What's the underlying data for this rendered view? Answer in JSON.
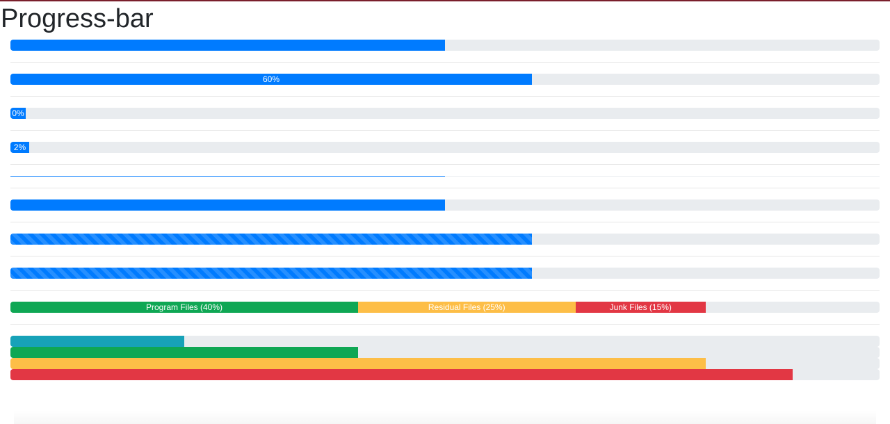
{
  "page": {
    "title": "Progress-bar"
  },
  "colors": {
    "primary": "#007bff",
    "success": "#0fa754",
    "warning": "#fdbe47",
    "danger": "#e23744",
    "info": "#17a2b8",
    "track": "#e9ecef"
  },
  "progress_bars": [
    {
      "value": 50,
      "label": "",
      "style": "default"
    },
    {
      "value": 60,
      "label": "60%",
      "style": "labeled"
    },
    {
      "value": 0,
      "label": "0%",
      "style": "labeled-min"
    },
    {
      "value": 2,
      "label": "2%",
      "style": "labeled-min"
    },
    {
      "value": 50,
      "label": "",
      "style": "thin"
    },
    {
      "value": 50,
      "label": "",
      "style": "default"
    },
    {
      "value": 60,
      "label": "",
      "style": "striped"
    },
    {
      "value": 60,
      "label": "",
      "style": "striped-animated"
    }
  ],
  "stacked_bar": {
    "segments": [
      {
        "value": 40,
        "label": "Program Files (40%)",
        "color": "#0fa754"
      },
      {
        "value": 25,
        "label": "Residual Files (25%)",
        "color": "#fdbe47"
      },
      {
        "value": 15,
        "label": "Junk Files (15%)",
        "color": "#e23744"
      }
    ]
  },
  "contextual_bars": [
    {
      "value": 20,
      "color": "#17a2b8"
    },
    {
      "value": 40,
      "color": "#0fa754"
    },
    {
      "value": 80,
      "color": "#fdbe47"
    },
    {
      "value": 90,
      "color": "#e23744"
    }
  ]
}
